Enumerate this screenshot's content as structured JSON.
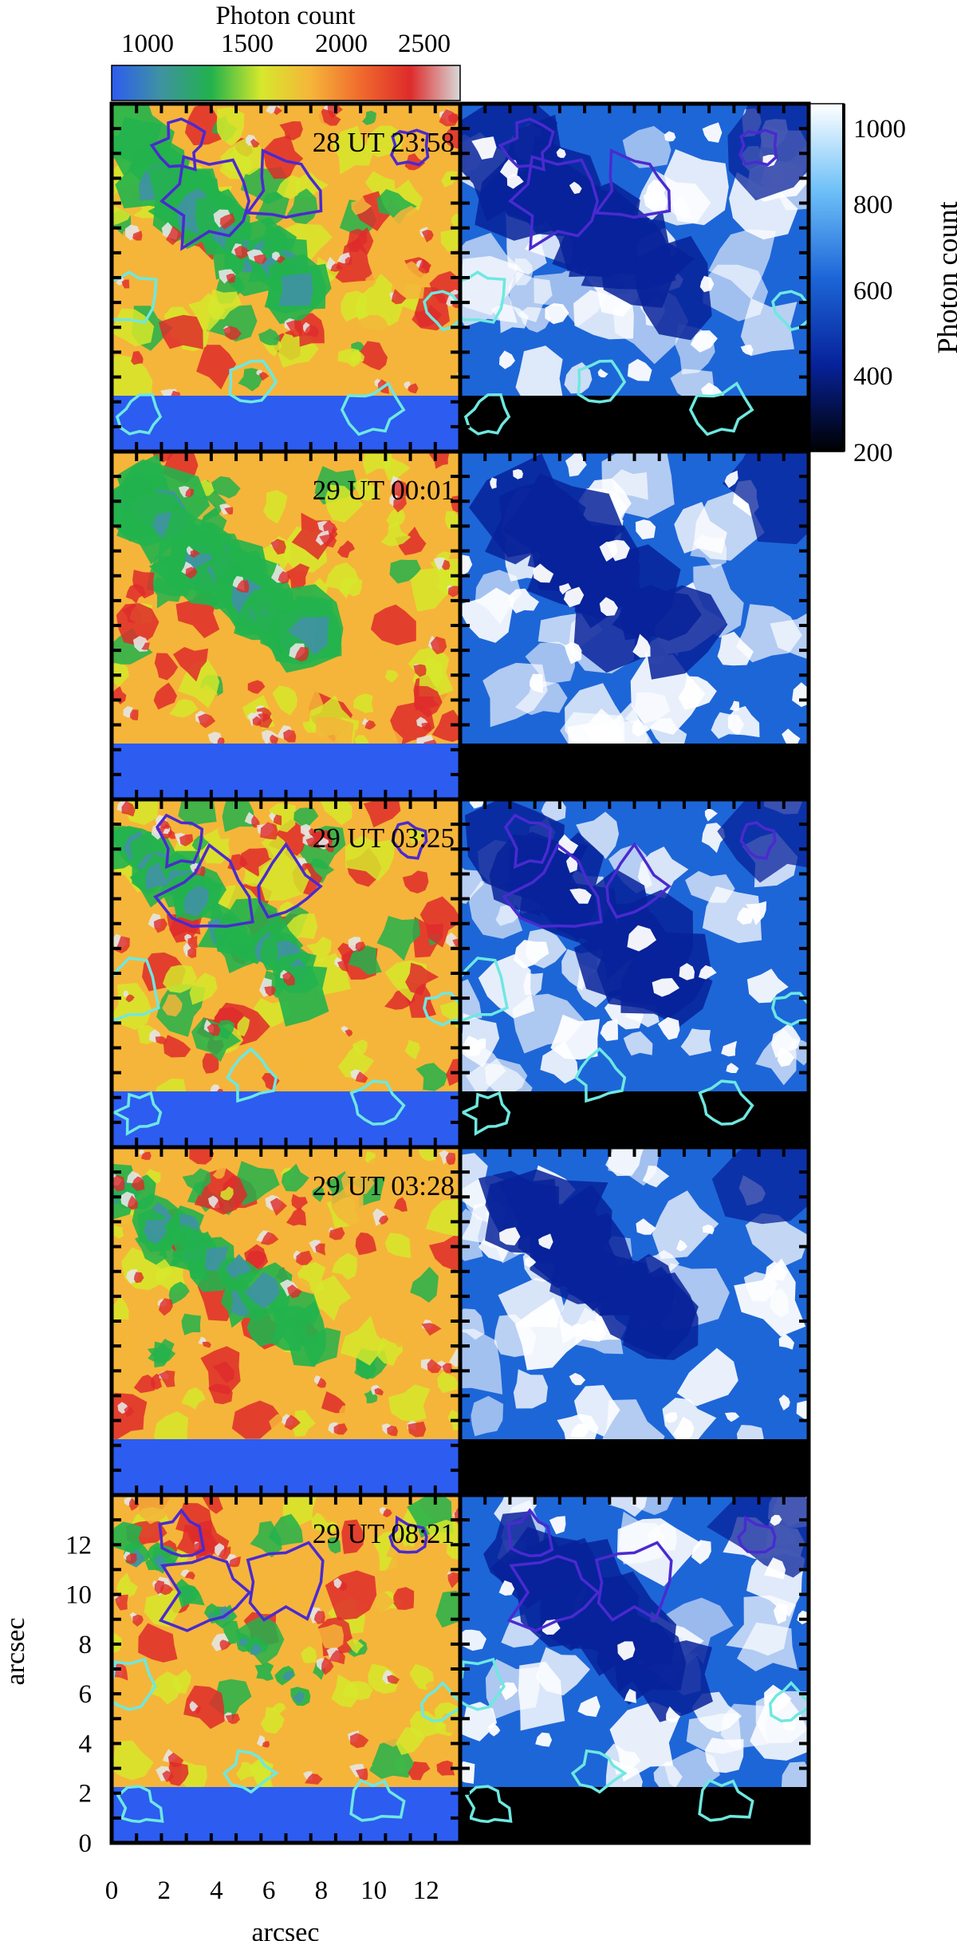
{
  "top_colorbar": {
    "title": "Photon count",
    "tick_labels": [
      "1000",
      "1500",
      "2000",
      "2500"
    ],
    "colors": [
      "#2d5cf0",
      "#3f93a0",
      "#22b24c",
      "#d6e82c",
      "#f5b53a",
      "#f06a2d",
      "#de2b2b",
      "#d9d9d9"
    ]
  },
  "right_colorbar": {
    "title": "Photon count",
    "tick_labels": [
      "1000",
      "800",
      "600",
      "400",
      "200"
    ],
    "colors": [
      "#ffffff",
      "#6ec0f8",
      "#1d66d8",
      "#07229a",
      "#000000"
    ]
  },
  "panels": [
    {
      "timestamp": "28 UT 23:58",
      "contours": true
    },
    {
      "timestamp": "29 UT 00:01",
      "contours": false
    },
    {
      "timestamp": "29 UT 03:25",
      "contours": true
    },
    {
      "timestamp": "29 UT 03:28",
      "contours": false
    },
    {
      "timestamp": "29 UT 08:21",
      "contours": true
    }
  ],
  "y_axis": {
    "label": "arcsec",
    "tick_labels": [
      "0",
      "2",
      "4",
      "6",
      "8",
      "10",
      "12"
    ]
  },
  "x_axis": {
    "label": "arcsec",
    "tick_labels": [
      "0",
      "2",
      "4",
      "6",
      "8",
      "10",
      "12"
    ]
  },
  "contour_colors": {
    "magnetic_positive": "#4a2ad0",
    "magnetic_negative": "#6ee8e0"
  },
  "left_colormap_colors": {
    "low": "#3f93a0",
    "mid_low": "#22b24c",
    "mid": "#d6e82c",
    "mid_high": "#f5b53a",
    "high": "#de2b2b",
    "peak": "#e6e6e6",
    "band": "#2d5cf0"
  },
  "right_colormap_colors": {
    "dark": "#07229a",
    "mid": "#1d66d8",
    "bright": "#ffffff",
    "band": "#000000"
  }
}
